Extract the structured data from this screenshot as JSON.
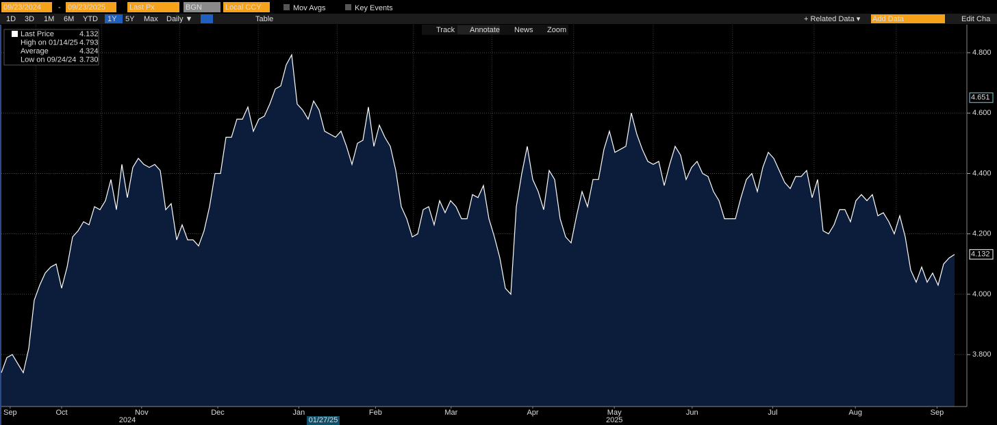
{
  "toolbar": {
    "start_date": "09/23/2024",
    "end_date": "09/23/2025",
    "field": "Last Px",
    "source": "BGN",
    "currency": "Local CCY",
    "mov_avgs": "Mov Avgs",
    "key_events": "Key Events",
    "ranges": [
      "1D",
      "3D",
      "1M",
      "6M",
      "YTD",
      "1Y",
      "5Y",
      "Max"
    ],
    "selected_range": "1Y",
    "frequency": "Daily ▼",
    "table": "Table",
    "related_data": "+ Related Data ▾",
    "add_data": "Add Data",
    "edit_chart": "Edit Cha"
  },
  "chart_tools": [
    "Track",
    "Annotate",
    "News",
    "Zoom"
  ],
  "chart_data": {
    "type": "area",
    "series": [
      {
        "name": "Last Price",
        "color": "#ffffff",
        "fill": "#0b1d3a",
        "values": [
          3.74,
          3.79,
          3.8,
          3.77,
          3.74,
          3.82,
          3.98,
          4.03,
          4.07,
          4.09,
          4.1,
          4.02,
          4.09,
          4.19,
          4.21,
          4.24,
          4.23,
          4.29,
          4.28,
          4.31,
          4.38,
          4.28,
          4.43,
          4.32,
          4.42,
          4.45,
          4.43,
          4.42,
          4.43,
          4.41,
          4.28,
          4.3,
          4.18,
          4.23,
          4.18,
          4.18,
          4.16,
          4.21,
          4.29,
          4.4,
          4.4,
          4.52,
          4.52,
          4.58,
          4.58,
          4.62,
          4.54,
          4.58,
          4.59,
          4.63,
          4.68,
          4.69,
          4.76,
          4.793,
          4.63,
          4.61,
          4.58,
          4.64,
          4.61,
          4.54,
          4.53,
          4.52,
          4.54,
          4.49,
          4.43,
          4.5,
          4.51,
          4.62,
          4.49,
          4.56,
          4.52,
          4.49,
          4.41,
          4.29,
          4.25,
          4.19,
          4.2,
          4.28,
          4.29,
          4.23,
          4.31,
          4.27,
          4.31,
          4.29,
          4.25,
          4.25,
          4.33,
          4.32,
          4.36,
          4.25,
          4.19,
          4.12,
          4.02,
          4.0,
          4.29,
          4.4,
          4.49,
          4.38,
          4.34,
          4.28,
          4.41,
          4.38,
          4.25,
          4.19,
          4.17,
          4.26,
          4.34,
          4.29,
          4.38,
          4.38,
          4.48,
          4.54,
          4.47,
          4.48,
          4.49,
          4.6,
          4.53,
          4.48,
          4.44,
          4.43,
          4.44,
          4.36,
          4.43,
          4.49,
          4.46,
          4.38,
          4.42,
          4.44,
          4.4,
          4.39,
          4.34,
          4.31,
          4.25,
          4.25,
          4.25,
          4.32,
          4.38,
          4.4,
          4.34,
          4.42,
          4.47,
          4.45,
          4.41,
          4.37,
          4.35,
          4.39,
          4.39,
          4.41,
          4.32,
          4.38,
          4.21,
          4.2,
          4.23,
          4.28,
          4.28,
          4.24,
          4.31,
          4.33,
          4.31,
          4.33,
          4.26,
          4.27,
          4.24,
          4.2,
          4.26,
          4.19,
          4.08,
          4.04,
          4.09,
          4.04,
          4.07,
          4.03,
          4.1,
          4.12,
          4.132
        ]
      }
    ],
    "ylim": [
      3.628,
      4.893
    ],
    "yticks": [
      {
        "value": 3.8,
        "label": "3.800"
      },
      {
        "value": 4.0,
        "label": "4.000"
      },
      {
        "value": 4.2,
        "label": "4.200"
      },
      {
        "value": 4.4,
        "label": "4.400"
      },
      {
        "value": 4.6,
        "label": "4.600"
      },
      {
        "value": 4.8,
        "label": "4.800"
      }
    ],
    "xlim": [
      0,
      176.25
    ],
    "xticks": [
      {
        "value": 1.6,
        "label": "Sep"
      },
      {
        "value": 11,
        "label": "Oct"
      },
      {
        "value": 25.6,
        "label": "Nov"
      },
      {
        "value": 39.5,
        "label": "Dec"
      },
      {
        "value": 54.3,
        "label": "Jan"
      },
      {
        "value": 68.3,
        "label": "Feb"
      },
      {
        "value": 82.1,
        "label": "Mar"
      },
      {
        "value": 97,
        "label": "Apr"
      },
      {
        "value": 111.9,
        "label": "May"
      },
      {
        "value": 126.1,
        "label": "Jun"
      },
      {
        "value": 140.8,
        "label": "Jul"
      },
      {
        "value": 155.9,
        "label": "Aug"
      },
      {
        "value": 170.8,
        "label": "Sep"
      }
    ],
    "years": [
      {
        "value": 23,
        "label": "2024"
      },
      {
        "value": 111.9,
        "label": "2025"
      }
    ],
    "cursor_date": {
      "value": 58.75,
      "label": "01/27/25"
    },
    "price_tags": [
      {
        "value": 4.651,
        "label": "4.651",
        "color": "#6fd3e8"
      },
      {
        "value": 4.132,
        "label": "4.132",
        "color": "#ffffff"
      }
    ],
    "grid": true,
    "stats": [
      {
        "label": "Last Price",
        "value": "4.132"
      },
      {
        "label": "High on 01/14/25",
        "value": "4.793"
      },
      {
        "label": "Average",
        "value": "4.324"
      },
      {
        "label": "Low on 09/24/24",
        "value": "3.730"
      }
    ]
  }
}
